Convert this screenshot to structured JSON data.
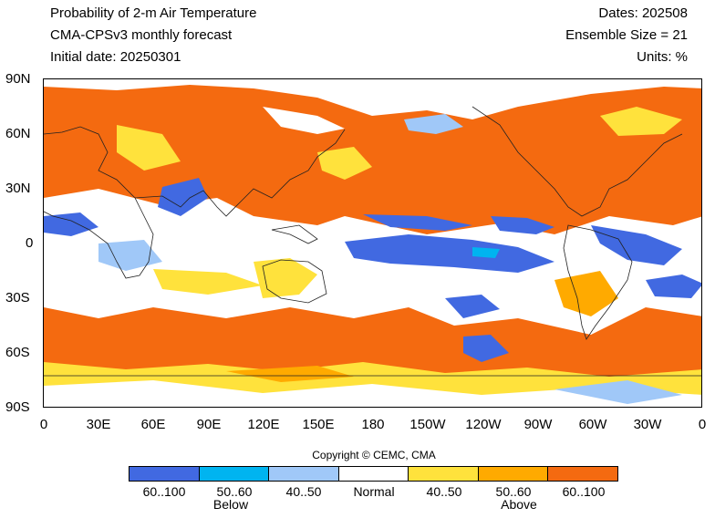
{
  "header": {
    "title": "Probability of 2-m Air Temperature",
    "model": "CMA-CPSv3 monthly forecast",
    "initial_date": "Initial date: 20250301",
    "dates": "Dates: 202508",
    "ensemble": "Ensemble Size = 21",
    "units": "Units: %"
  },
  "axes": {
    "y_ticks": [
      "90N",
      "60N",
      "30N",
      "0",
      "30S",
      "60S",
      "90S"
    ],
    "x_ticks": [
      "0",
      "30E",
      "60E",
      "90E",
      "120E",
      "150E",
      "180",
      "150W",
      "120W",
      "90W",
      "60W",
      "30W",
      "0"
    ]
  },
  "copyright": "Copyright © CEMC, CMA",
  "legend": {
    "categories": [
      {
        "label": "60..100",
        "color": "#4169e1"
      },
      {
        "label": "50..60",
        "color": "#00b4f0"
      },
      {
        "label": "40..50",
        "color": "#a0c8f8"
      },
      {
        "label": "Normal",
        "color": "#ffffff"
      },
      {
        "label": "40..50",
        "color": "#ffe23c"
      },
      {
        "label": "50..60",
        "color": "#ffaa00"
      },
      {
        "label": "60..100",
        "color": "#f46a10"
      }
    ],
    "below_label": "Below",
    "above_label": "Above"
  }
}
